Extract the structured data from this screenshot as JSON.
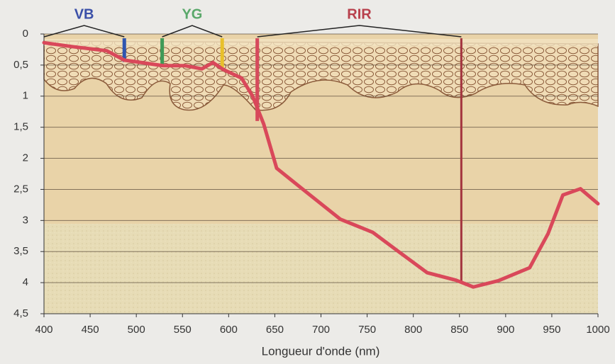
{
  "chart_data": {
    "type": "line",
    "x_label": "Longueur d'onde (nm)",
    "x": [
      400,
      429,
      468,
      487,
      529,
      553,
      571,
      583,
      594,
      614,
      626,
      638,
      652,
      683,
      721,
      756,
      784,
      815,
      846,
      865,
      892,
      926,
      946,
      962,
      981,
      1000
    ],
    "series": [
      {
        "color": "#d9485a",
        "values": [
          0.14,
          0.2,
          0.27,
          0.42,
          0.51,
          0.51,
          0.56,
          0.46,
          0.57,
          0.71,
          1.0,
          1.45,
          2.16,
          2.53,
          2.98,
          3.19,
          3.5,
          3.84,
          3.96,
          4.07,
          3.97,
          3.76,
          3.21,
          2.59,
          2.49,
          2.73
        ]
      }
    ],
    "markers": [
      {
        "wavelength": 487,
        "depth": 0.45,
        "color": "#2f55b0"
      },
      {
        "wavelength": 528,
        "depth": 0.5,
        "color": "#3f9a57"
      },
      {
        "wavelength": 593,
        "depth": 0.55,
        "color": "#e8c02a"
      },
      {
        "wavelength": 631,
        "depth": 1.4,
        "color": "#d64a5c"
      },
      {
        "wavelength": 852,
        "depth": 4.0,
        "color": "#a3343e"
      }
    ],
    "bands": [
      {
        "name": "VB",
        "color": "#3a4fa8",
        "range": [
          400,
          487
        ]
      },
      {
        "name": "YG",
        "color": "#5aa86a",
        "range": [
          528,
          593
        ]
      },
      {
        "name": "RIR",
        "color": "#b8404c",
        "range": [
          631,
          852
        ]
      }
    ],
    "xlim": [
      400,
      1000
    ],
    "ylim": [
      0,
      4.5
    ],
    "xticks": [
      400,
      450,
      500,
      550,
      600,
      650,
      700,
      750,
      800,
      850,
      900,
      950,
      1000
    ],
    "yticks": [
      0,
      {
        "value": 0.5,
        "label": "0,5"
      },
      1,
      {
        "value": 1.5,
        "label": "1,5"
      },
      2,
      {
        "value": 2.5,
        "label": "2,5"
      },
      3,
      {
        "value": 3.5,
        "label": "3,5"
      },
      4,
      {
        "value": 4.5,
        "label": "4,5"
      }
    ],
    "grid": true
  }
}
